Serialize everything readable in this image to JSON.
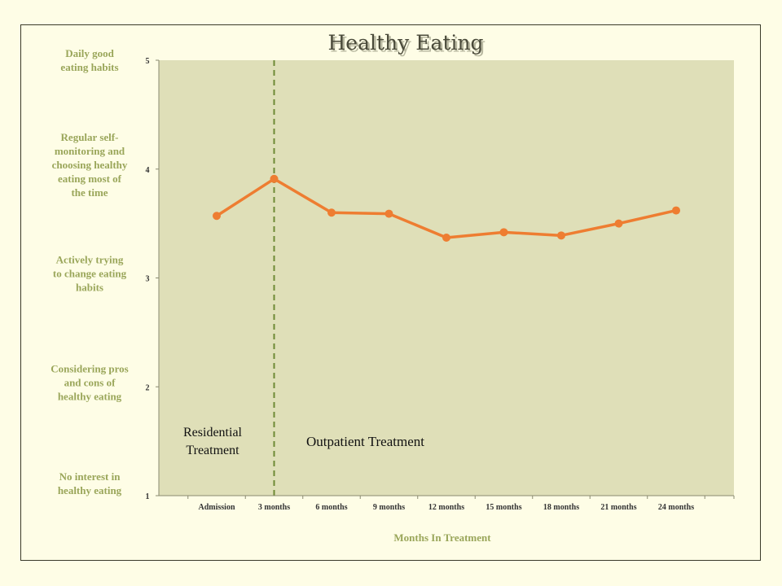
{
  "chart_data": {
    "type": "line",
    "title": "Healthy Eating",
    "xlabel": "Months In Treatment",
    "ylabel": "",
    "ylim": [
      1,
      5
    ],
    "yticks": [
      "1",
      "2",
      "3",
      "4",
      "5"
    ],
    "y_level_labels": [
      {
        "value": 1,
        "lines": [
          "No interest in",
          "healthy eating"
        ]
      },
      {
        "value": 2,
        "lines": [
          "Considering pros",
          "and cons of",
          "healthy eating"
        ]
      },
      {
        "value": 3,
        "lines": [
          "Actively trying",
          "to change eating",
          "habits"
        ]
      },
      {
        "value": 4,
        "lines": [
          "Regular self-",
          "monitoring and",
          "choosing healthy",
          "eating most of",
          "the time"
        ]
      },
      {
        "value": 5,
        "lines": [
          "Daily good",
          "eating habits"
        ]
      }
    ],
    "categories": [
      "Admission",
      "3 months",
      "6 months",
      "9 months",
      "12 months",
      "15 months",
      "18 months",
      "21 months",
      "24 months"
    ],
    "series": [
      {
        "name": "Healthy Eating",
        "values": [
          3.57,
          3.91,
          3.6,
          3.59,
          3.37,
          3.42,
          3.39,
          3.5,
          3.62
        ],
        "color": "#ee7d31"
      }
    ],
    "divider_after_category": "3 months",
    "annotations": {
      "residential": [
        "Residential",
        "Treatment"
      ],
      "outpatient": "Outpatient Treatment"
    },
    "colors": {
      "plot_bg": "#dfdfb8",
      "line": "#ee7d31",
      "divider": "#6e8a35",
      "level_label": "#9aa65a"
    }
  }
}
